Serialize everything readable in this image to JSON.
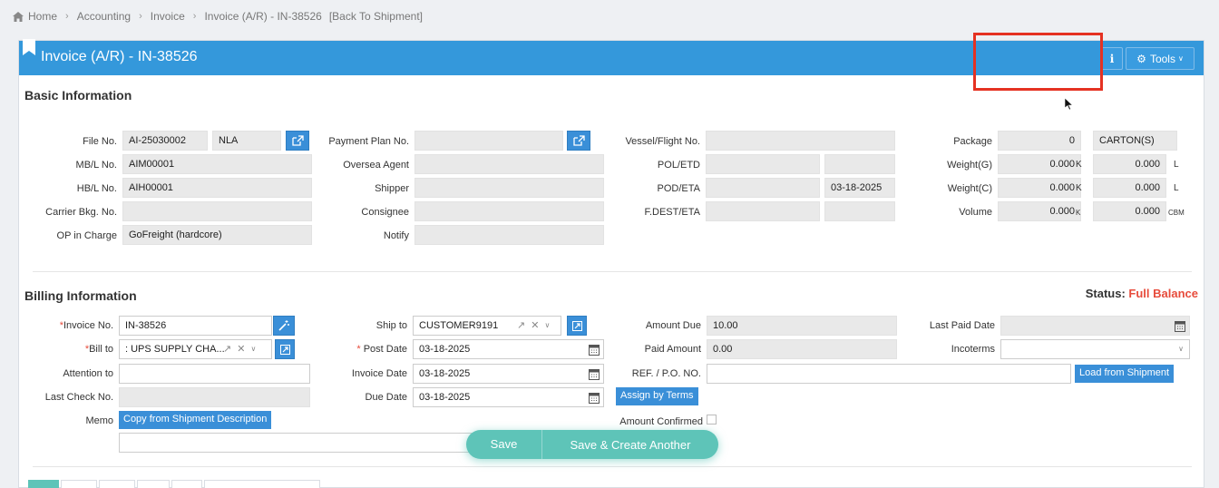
{
  "breadcrumb": {
    "home": "Home",
    "accounting": "Accounting",
    "invoice": "Invoice",
    "current": "Invoice (A/R) - IN-38526",
    "back": "[Back To Shipment]"
  },
  "header": {
    "title": "Invoice (A/R) - IN-38526",
    "info_label": "i",
    "tools_label": "Tools"
  },
  "basic": {
    "title": "Basic Information",
    "file_no_label": "File No.",
    "file_no": "AI-25030002",
    "file_code": "NLA",
    "mbl_label": "MB/L No.",
    "mbl": "AIM00001",
    "hbl_label": "HB/L No.",
    "hbl": "AIH00001",
    "carrier_bkg_label": "Carrier Bkg. No.",
    "carrier_bkg": "",
    "op_label": "OP in Charge",
    "op": "GoFreight (hardcore)",
    "payment_plan_label": "Payment Plan No.",
    "payment_plan": "",
    "oversea_agent_label": "Oversea Agent",
    "shipper_label": "Shipper",
    "consignee_label": "Consignee",
    "notify_label": "Notify",
    "vessel_label": "Vessel/Flight No.",
    "pol_label": "POL/ETD",
    "pod_label": "POD/ETA",
    "pod_eta": "03-18-2025",
    "fdest_label": "F.DEST/ETA",
    "package_label": "Package",
    "package": "0",
    "package_unit": "CARTON(S)",
    "weight_g_label": "Weight(G)",
    "weight_g_k": "0.000",
    "weight_g_l": "0.000",
    "weight_c_label": "Weight(C)",
    "weight_c_k": "0.000",
    "weight_c_l": "0.000",
    "volume_label": "Volume",
    "volume_k": "0.000",
    "volume_cbm": "0.000",
    "unit_k": "K",
    "unit_l": "L",
    "unit_k_small": "K",
    "unit_cbm": "CBM"
  },
  "billing": {
    "title": "Billing Information",
    "status_label": "Status:",
    "status_value": "Full Balance",
    "status_color": "#e74c3c",
    "invoice_no_label": "Invoice No.",
    "invoice_no": "IN-38526",
    "bill_to_label": "Bill to",
    "bill_to": ": UPS SUPPLY CHA...",
    "attention_label": "Attention to",
    "last_check_label": "Last Check No.",
    "memo_label": "Memo",
    "copy_desc_label": "Copy from Shipment Description",
    "ship_to_label": "Ship to",
    "ship_to": "CUSTOMER9191",
    "post_date_label": "Post Date",
    "post_date": "03-18-2025",
    "invoice_date_label": "Invoice Date",
    "invoice_date": "03-18-2025",
    "due_date_label": "Due Date",
    "due_date": "03-18-2025",
    "assign_terms_label": "Assign by Terms",
    "amount_due_label": "Amount Due",
    "amount_due": "10.00",
    "paid_amount_label": "Paid Amount",
    "paid_amount": "0.00",
    "ref_label": "REF. / P.O. NO.",
    "amount_confirmed_label": "Amount Confirmed",
    "last_paid_label": "Last Paid Date",
    "incoterms_label": "Incoterms",
    "load_shipment_label": "Load from Shipment"
  },
  "actions": {
    "save_label": "Save",
    "save_create_label": "Save & Create Another"
  },
  "colors": {
    "header_blue": "#3498db",
    "button_blue": "#3a8fd8",
    "save_teal": "#5ec4b8",
    "highlight_red": "#e53222"
  }
}
